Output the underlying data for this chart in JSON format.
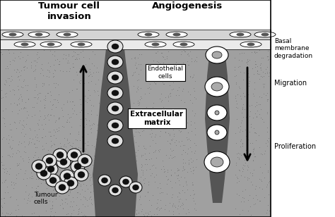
{
  "fig_width": 4.74,
  "fig_height": 3.08,
  "dpi": 100,
  "title_left": "Tumour cell\ninvasion",
  "title_right": "Angiogenesis",
  "label_basal": "Basal\nmembrane\ndegradation",
  "label_migration": "Migration",
  "label_proliferation": "Proliferation",
  "label_endothelial": "Endothelial\ncells",
  "label_extracellular": "Extracellular\nmatrix",
  "label_tumour_cells": "Tumour\ncells",
  "matrix_gray": "#a0a0a0",
  "dot_color": "#707070",
  "channel_dark": "#555555",
  "band_top_gray": "#cccccc",
  "band_bot_light": "#e8e8e8",
  "white": "#ffffff",
  "black": "#000000",
  "endo_nucleus": "#aaaaaa",
  "tumour_nucleus_dark": "#111111",
  "tumour_body_light": "#e0e0e0"
}
